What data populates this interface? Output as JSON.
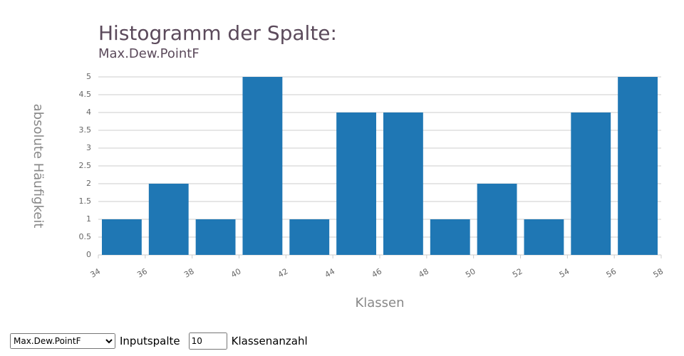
{
  "chart_data": {
    "type": "histogram",
    "title": "Histogramm der Spalte:",
    "subtitle": "Max.Dew.PointF",
    "x_label": "Klassen",
    "y_label": "absolute Häufigkeit",
    "bins": [
      34,
      36,
      38,
      40,
      42,
      44,
      46,
      48,
      50,
      52,
      54,
      56,
      58
    ],
    "values": [
      1,
      2,
      1,
      5,
      1,
      4,
      4,
      1,
      2,
      1,
      4,
      5
    ],
    "color": "#1f77b4",
    "xlim": [
      34,
      58
    ],
    "xticks": [
      34,
      36,
      38,
      40,
      42,
      44,
      46,
      48,
      50,
      52,
      54,
      56,
      58
    ],
    "ylim": [
      0,
      5
    ],
    "yticks": [
      0,
      0.5,
      1,
      1.5,
      2,
      2.5,
      3,
      3.5,
      4,
      4.5,
      5
    ],
    "grid": true
  },
  "controls": {
    "column_select": "Max.Dew.PointF",
    "column_label": "Inputspalte",
    "bins_input": "10",
    "bins_label": "Klassenanzahl"
  }
}
